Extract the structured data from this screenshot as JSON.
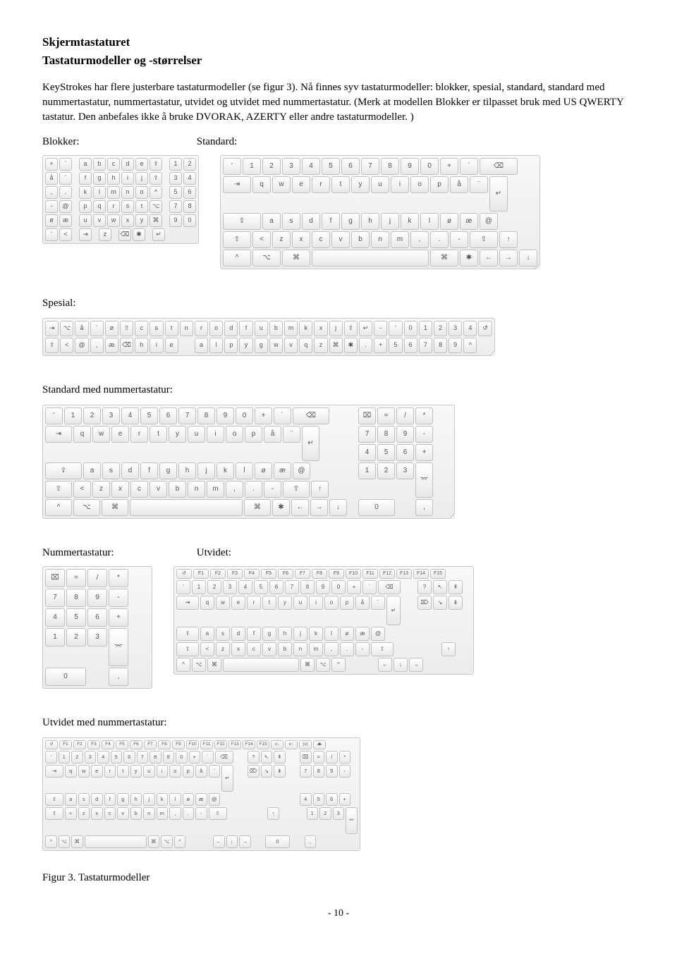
{
  "heading": "Skjermtastaturet",
  "subheading": "Tastaturmodeller og -størrelser",
  "paragraph": "KeyStrokes har flere justerbare tastaturmodeller (se figur 3). Nå finnes syv tastaturmodeller: blokker, spesial, standard, standard med nummertastatur, nummertastatur, utvidet og utvidet med nummertastatur. (Merk at modellen Blokker er tilpasset bruk med US QWERTY tastatur. Den anbefales ikke å bruke DVORAK, AZERTY eller andre tastaturmodeller. )",
  "labels": {
    "blokker": "Blokker:",
    "standard": "Standard:",
    "spesial": "Spesial:",
    "stdnum": "Standard med nummertastatur:",
    "num": "Nummertastatur:",
    "utvidet": "Utvidet:",
    "utvnum": "Utvidet med nummertastatur:"
  },
  "figure_caption": "Figur 3. Tastaturmodeller",
  "page_number": "- 10 -",
  "keyboards": {
    "blokker": {
      "rows": [
        [
          "+",
          "`",
          "",
          "a",
          "b",
          "c",
          "d",
          "e",
          "⇪",
          "",
          "1",
          "2"
        ],
        [
          "å",
          "¨",
          "",
          "f",
          "g",
          "h",
          "i",
          "j",
          "⇧",
          "",
          "3",
          "4"
        ],
        [
          ",",
          ".",
          "",
          "k",
          "l",
          "m",
          "n",
          "o",
          "^",
          "",
          "5",
          "6"
        ],
        [
          "-",
          "@",
          "",
          "p",
          "q",
          "r",
          "s",
          "t",
          "⌥",
          "",
          "7",
          "8"
        ],
        [
          "ø",
          "æ",
          "",
          "u",
          "v",
          "w",
          "x",
          "y",
          "⌘",
          "",
          "9",
          "0"
        ],
        [
          "'",
          "<",
          "",
          "⇥",
          "",
          "z",
          "",
          "⌫",
          "✱",
          "",
          "↵",
          ""
        ]
      ]
    },
    "standard": {
      "rows": [
        [
          "'",
          "1",
          "2",
          "3",
          "4",
          "5",
          "6",
          "7",
          "8",
          "9",
          "0",
          "+",
          "´",
          "⌫"
        ],
        [
          "⇥",
          "q",
          "w",
          "e",
          "r",
          "t",
          "y",
          "u",
          "i",
          "o",
          "p",
          "å",
          "¨",
          "↵"
        ],
        [
          "⇪",
          "a",
          "s",
          "d",
          "f",
          "g",
          "h",
          "j",
          "k",
          "l",
          "ø",
          "æ",
          "@"
        ],
        [
          "⇧",
          "<",
          "z",
          "x",
          "c",
          "v",
          "b",
          "n",
          "m",
          ",",
          ".",
          "-",
          "⇧",
          "↑"
        ],
        [
          "^",
          "⌥",
          "⌘",
          "space",
          "⌘",
          "✱",
          "←",
          "→",
          "↓"
        ]
      ],
      "widths": {
        "0,13": "wide20",
        "1,0": "wide15",
        "1,13": "tall2",
        "2,0": "wide20",
        "3,0": "wide15",
        "3,12": "wide15",
        "4,0": "wide15",
        "4,1": "wide15",
        "4,2": "wide15",
        "4,3": "space",
        "4,4": "wide15"
      }
    },
    "spesial": {
      "rows": [
        [
          "⇥",
          "⌥",
          "å",
          "¨",
          "ø",
          "⇧",
          "c",
          "s",
          "t",
          "n",
          "r",
          "o",
          "d",
          "f",
          "u",
          "b",
          "m",
          "k",
          "x",
          "j",
          "⇪",
          "↵",
          "-",
          "'",
          "0",
          "1",
          "2",
          "3",
          "4",
          "↺"
        ],
        [
          "⇪",
          "<",
          "@",
          ",",
          "æ",
          "⌫",
          "h",
          "i",
          "e",
          "",
          "a",
          "l",
          "p",
          "y",
          "g",
          "w",
          "v",
          "q",
          "z",
          "⌘",
          "✱",
          ".",
          "+",
          "5",
          "6",
          "7",
          "8",
          "9",
          "^",
          ""
        ]
      ]
    },
    "stdnum": {
      "main": {
        "rows": [
          [
            "'",
            "1",
            "2",
            "3",
            "4",
            "5",
            "6",
            "7",
            "8",
            "9",
            "0",
            "+",
            "´",
            "⌫"
          ],
          [
            "⇥",
            "q",
            "w",
            "e",
            "r",
            "t",
            "y",
            "u",
            "i",
            "o",
            "p",
            "å",
            "¨",
            "↵"
          ],
          [
            "⇪",
            "a",
            "s",
            "d",
            "f",
            "g",
            "h",
            "j",
            "k",
            "l",
            "ø",
            "æ",
            "@"
          ],
          [
            "⇧",
            "<",
            "z",
            "x",
            "c",
            "v",
            "b",
            "n",
            "m",
            ",",
            ".",
            "-",
            "⇧",
            "↑"
          ],
          [
            "^",
            "⌥",
            "⌘",
            "space",
            "⌘",
            "✱",
            "←",
            "→",
            "↓"
          ]
        ],
        "widths": {
          "0,13": "wide20",
          "1,0": "wide15",
          "1,13": "tall2",
          "2,0": "wide20",
          "3,0": "wide15",
          "3,12": "wide15",
          "4,0": "wide15",
          "4,1": "wide15",
          "4,2": "wide15",
          "4,3": "space",
          "4,4": "wide15"
        }
      },
      "numpad": {
        "rows": [
          [
            "⌧",
            "=",
            "/",
            "*"
          ],
          [
            "7",
            "8",
            "9",
            "-"
          ],
          [
            "4",
            "5",
            "6",
            "+"
          ],
          [
            "1",
            "2",
            "3",
            "⌤"
          ],
          [
            "0",
            "",
            ",",
            ""
          ]
        ],
        "widths": {
          "3,3": "tall2",
          "4,0": "numw2"
        }
      }
    },
    "num": {
      "rows": [
        [
          "⌧",
          "=",
          "/",
          "*"
        ],
        [
          "7",
          "8",
          "9",
          "-"
        ],
        [
          "4",
          "5",
          "6",
          "+"
        ],
        [
          "1",
          "2",
          "3",
          "⌤"
        ],
        [
          "0",
          "",
          ",",
          ""
        ]
      ],
      "widths": {
        "3,3": "tall2",
        "4,0": "numw2"
      }
    },
    "utvidet": {
      "fn": [
        "↺",
        "F1",
        "F2",
        "F3",
        "F4",
        "F5",
        "F6",
        "F7",
        "F8",
        "F9",
        "F10",
        "F11",
        "F12",
        "F13",
        "F14",
        "F15"
      ],
      "rows": [
        [
          "'",
          "1",
          "2",
          "3",
          "4",
          "5",
          "6",
          "7",
          "8",
          "9",
          "0",
          "+",
          "´",
          "⌫",
          "",
          "?",
          "↖",
          "⇞"
        ],
        [
          "⇥",
          "q",
          "w",
          "e",
          "r",
          "t",
          "y",
          "u",
          "i",
          "o",
          "p",
          "å",
          "¨",
          "↵",
          "",
          "⌦",
          "↘",
          "⇟"
        ],
        [
          "⇪",
          "a",
          "s",
          "d",
          "f",
          "g",
          "h",
          "j",
          "k",
          "l",
          "ø",
          "æ",
          "@",
          "",
          "",
          "",
          "",
          ""
        ],
        [
          "⇧",
          "<",
          "z",
          "x",
          "c",
          "v",
          "b",
          "n",
          "m",
          ",",
          ".",
          "-",
          "⇧",
          "",
          "",
          "",
          "↑",
          ""
        ],
        [
          "^",
          "⌥",
          "⌘",
          "space",
          "⌘",
          "⌥",
          "^",
          "",
          "",
          "←",
          "↓",
          "→"
        ]
      ],
      "widths": {
        "0,13": "wide15",
        "1,0": "wide15",
        "1,13": "tall2",
        "2,0": "wide15",
        "3,0": "wide15",
        "3,12": "wide15",
        "4,3": "space"
      }
    },
    "utvnum": {
      "fn": [
        "↺",
        "F1",
        "F2",
        "F3",
        "F4",
        "F5",
        "F6",
        "F7",
        "F8",
        "F9",
        "F10",
        "F11",
        "F12",
        "F13",
        "F14",
        "F15",
        "v↓",
        "v↑",
        "(v)",
        "⏏"
      ],
      "rows": [
        [
          "'",
          "1",
          "2",
          "3",
          "4",
          "5",
          "6",
          "7",
          "8",
          "9",
          "0",
          "+",
          "´",
          "⌫",
          "",
          "?",
          "↖",
          "⇞",
          "",
          "⌧",
          "=",
          "/",
          "*"
        ],
        [
          "⇥",
          "q",
          "w",
          "e",
          "r",
          "t",
          "y",
          "u",
          "i",
          "o",
          "p",
          "å",
          "¨",
          "↵",
          "",
          "⌦",
          "↘",
          "⇟",
          "",
          "7",
          "8",
          "9",
          "-"
        ],
        [
          "⇪",
          "a",
          "s",
          "d",
          "f",
          "g",
          "h",
          "j",
          "k",
          "l",
          "ø",
          "æ",
          "@",
          "",
          "",
          "",
          "",
          "",
          "",
          "4",
          "5",
          "6",
          "+"
        ],
        [
          "⇧",
          "<",
          "z",
          "x",
          "c",
          "v",
          "b",
          "n",
          "m",
          ",",
          ".",
          "-",
          "⇧",
          "",
          "",
          "",
          "↑",
          "",
          "",
          "1",
          "2",
          "3",
          "⌤"
        ],
        [
          "^",
          "⌥",
          "⌘",
          "space",
          "⌘",
          "⌥",
          "^",
          "",
          "",
          "←",
          "↓",
          "→",
          "",
          "0",
          "",
          ",",
          ""
        ]
      ],
      "widths": {
        "0,13": "wide15",
        "1,0": "wide15",
        "1,13": "tall2",
        "2,0": "wide15",
        "3,0": "wide15",
        "3,12": "wide15",
        "4,3": "space",
        "3,22": "tall2",
        "4,13": "numw2"
      }
    }
  }
}
